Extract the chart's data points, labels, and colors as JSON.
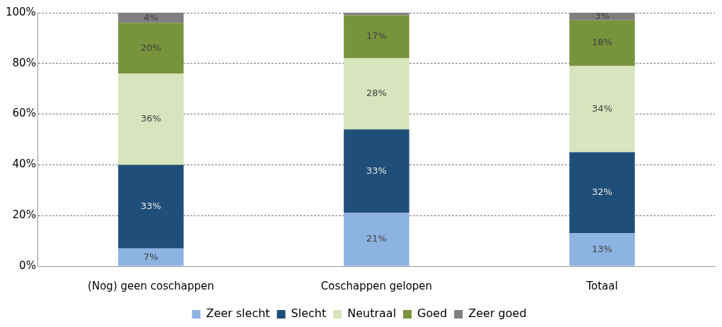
{
  "chart_data": {
    "type": "bar",
    "stacked": true,
    "categories": [
      "(Nog) geen coschappen",
      "Coschappen gelopen",
      "Totaal"
    ],
    "series": [
      {
        "name": "Zeer slecht",
        "color": "#8db3e2",
        "values": [
          7,
          21,
          13
        ],
        "value_labels": [
          "7%",
          "21%",
          "13%"
        ]
      },
      {
        "name": "Slecht",
        "color": "#1f4e79",
        "values": [
          33,
          33,
          32
        ],
        "value_labels": [
          "33%",
          "33%",
          "32%"
        ]
      },
      {
        "name": "Neutraal",
        "color": "#d7e4bd",
        "values": [
          36,
          28,
          34
        ],
        "value_labels": [
          "36%",
          "28%",
          "34%"
        ]
      },
      {
        "name": "Goed",
        "color": "#77933c",
        "values": [
          20,
          17,
          18
        ],
        "value_labels": [
          "20%",
          "17%",
          "18%"
        ]
      },
      {
        "name": "Zeer goed",
        "color": "#7f7f7f",
        "values": [
          4,
          1,
          3
        ],
        "value_labels": [
          "4%",
          null,
          "3%"
        ]
      }
    ],
    "ylim": [
      0,
      100
    ],
    "yticks": [
      {
        "value": 0,
        "label": "0%"
      },
      {
        "value": 20,
        "label": "20%"
      },
      {
        "value": 40,
        "label": "40%"
      },
      {
        "value": 60,
        "label": "60%"
      },
      {
        "value": 80,
        "label": "80%"
      },
      {
        "value": 100,
        "label": "100%"
      }
    ],
    "grid": "y",
    "legend": "bottom"
  }
}
